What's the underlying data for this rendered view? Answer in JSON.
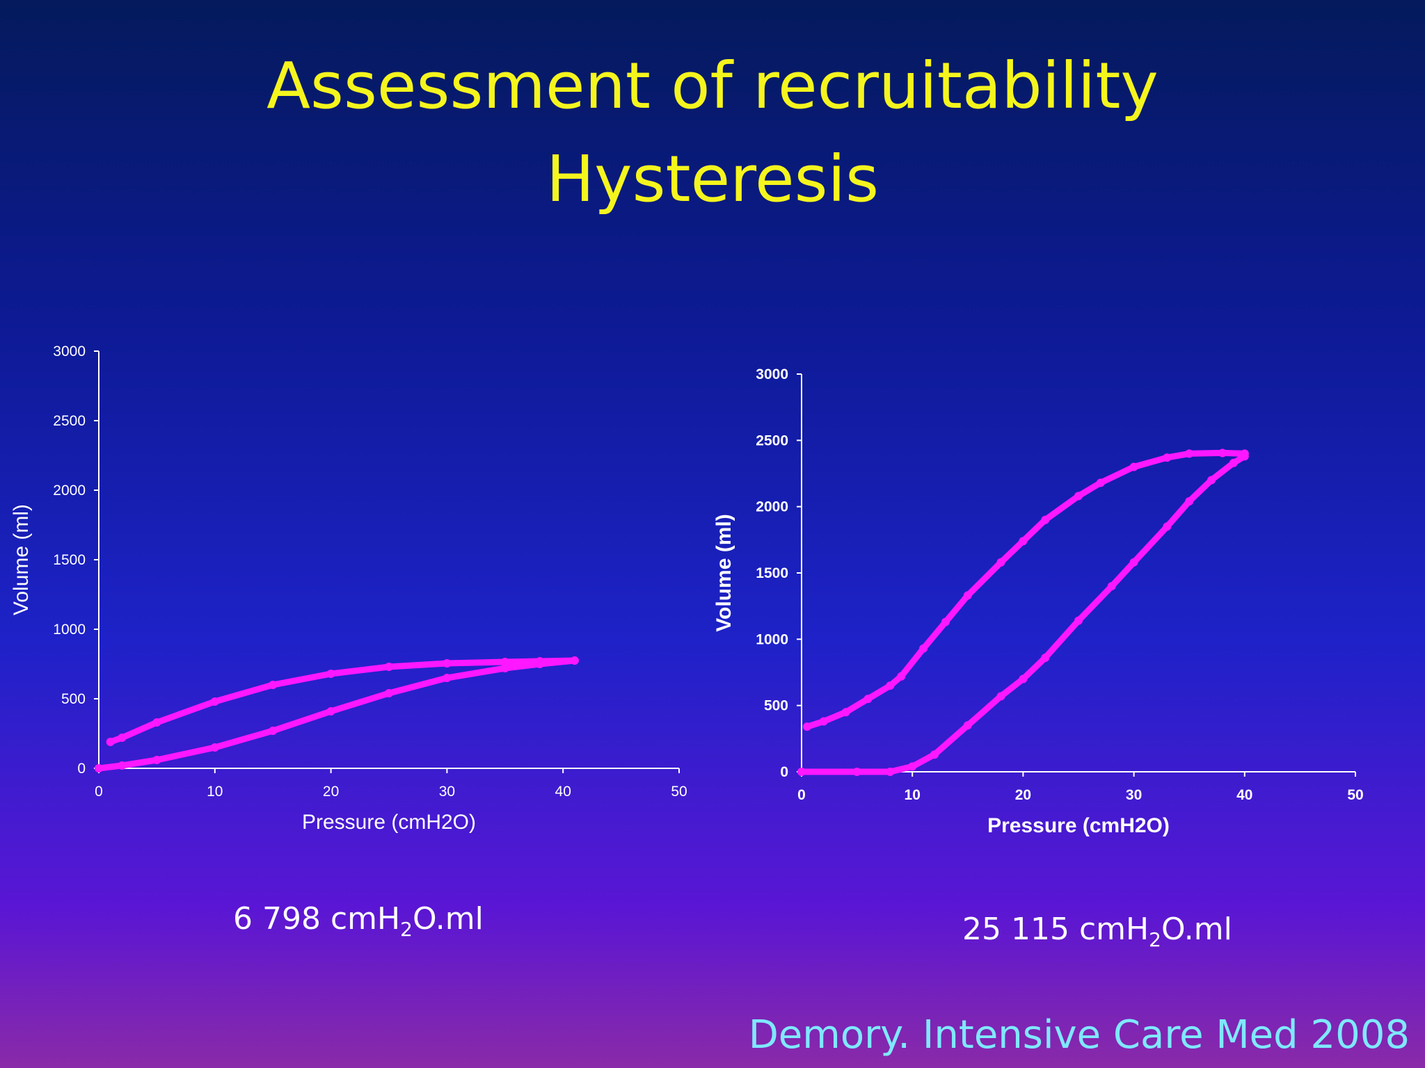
{
  "title_line1": "Assessment of recruitability",
  "title_line2": "Hysteresis",
  "citation": "Demory. Intensive Care Med 2008",
  "colors": {
    "curve": "#ff18ff",
    "title": "#f5f51e",
    "citation": "#7fe8ff"
  },
  "chart_data": [
    {
      "type": "line",
      "xlabel": "Pressure (cmH2O)",
      "ylabel": "Volume (ml)",
      "xlim": [
        0,
        50
      ],
      "ylim": [
        0,
        3000
      ],
      "xticks": [
        0,
        10,
        20,
        30,
        40,
        50
      ],
      "yticks": [
        0,
        500,
        1000,
        1500,
        2000,
        2500,
        3000
      ],
      "grid": false,
      "series": [
        {
          "x": [
            0,
            2,
            5,
            10,
            15,
            20,
            25,
            30,
            35,
            38,
            41
          ],
          "y": [
            0,
            20,
            60,
            150,
            270,
            410,
            540,
            650,
            720,
            750,
            775
          ]
        },
        {
          "x": [
            41,
            38,
            35,
            30,
            25,
            20,
            15,
            10,
            5,
            2,
            1
          ],
          "y": [
            775,
            770,
            765,
            755,
            730,
            680,
            600,
            480,
            330,
            220,
            190
          ]
        }
      ],
      "area_value": "6 798",
      "area_unit_pre": "cmH",
      "area_unit_sub": "2",
      "area_unit_post": "O.ml"
    },
    {
      "type": "line",
      "xlabel": "Pressure (cmH2O)",
      "ylabel": "Volume (ml)",
      "xlim": [
        0,
        50
      ],
      "ylim": [
        0,
        3000
      ],
      "xticks": [
        0,
        10,
        20,
        30,
        40,
        50
      ],
      "yticks": [
        0,
        500,
        1000,
        1500,
        2000,
        2500,
        3000
      ],
      "grid": false,
      "series": [
        {
          "x": [
            0,
            5,
            8,
            10,
            12,
            15,
            18,
            20,
            22,
            25,
            28,
            30,
            33,
            35,
            37,
            39,
            40
          ],
          "y": [
            0,
            0,
            0,
            40,
            130,
            350,
            570,
            700,
            860,
            1140,
            1400,
            1580,
            1850,
            2040,
            2200,
            2330,
            2380
          ]
        },
        {
          "x": [
            40,
            38,
            35,
            33,
            30,
            27,
            25,
            22,
            20,
            18,
            15,
            13,
            11,
            9,
            8,
            6,
            4,
            2,
            0.5
          ],
          "y": [
            2400,
            2405,
            2400,
            2370,
            2300,
            2180,
            2080,
            1900,
            1740,
            1580,
            1330,
            1130,
            930,
            720,
            650,
            550,
            450,
            380,
            340
          ]
        }
      ],
      "area_value": "25 115",
      "area_unit_pre": "cmH",
      "area_unit_sub": "2",
      "area_unit_post": "O.ml"
    }
  ]
}
